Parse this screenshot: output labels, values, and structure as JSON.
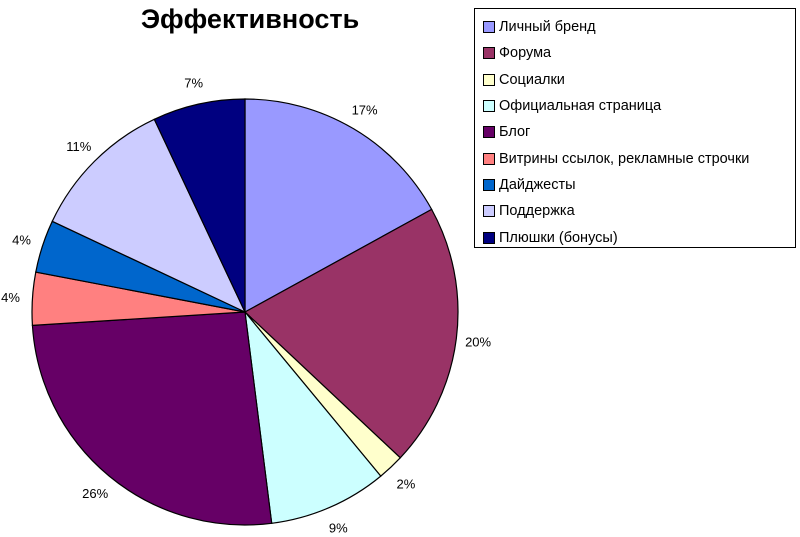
{
  "chart_data": {
    "type": "pie",
    "title": "Эффективность",
    "legend_position": "right",
    "slices": [
      {
        "label": "Личный бренд",
        "value": 17,
        "display": "17%",
        "color": "#9999ff"
      },
      {
        "label": "Форума",
        "value": 20,
        "display": "20%",
        "color": "#993366"
      },
      {
        "label": "Социалки",
        "value": 2,
        "display": "2%",
        "color": "#ffffcc"
      },
      {
        "label": "Официальная страница",
        "value": 9,
        "display": "9%",
        "color": "#ccffff"
      },
      {
        "label": "Блог",
        "value": 26,
        "display": "26%",
        "color": "#660066"
      },
      {
        "label": "Витрины ссылок, рекламные строчки",
        "value": 4,
        "display": "4%",
        "color": "#ff8080"
      },
      {
        "label": "Дайджесты",
        "value": 4,
        "display": "4%",
        "color": "#0066cc"
      },
      {
        "label": "Поддержка",
        "value": 11,
        "display": "11%",
        "color": "#ccccff"
      },
      {
        "label": "Плюшки (бонусы)",
        "value": 7,
        "display": "7%",
        "color": "#000080"
      }
    ]
  }
}
